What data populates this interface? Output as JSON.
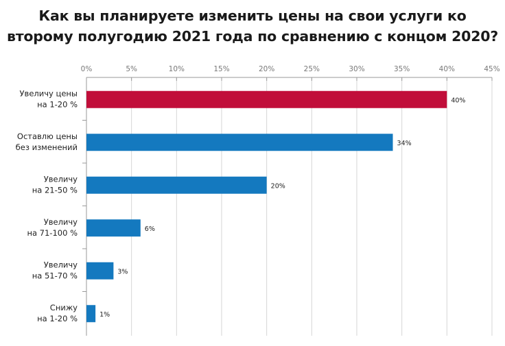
{
  "chart_data": {
    "type": "bar",
    "orientation": "horizontal",
    "title_lines": [
      "Как вы планируете изменить цены на свои услуги ко",
      "второму полугодию 2021 года по сравнению с концом 2020?"
    ],
    "categories": [
      [
        "Увеличу цены",
        "на 1-20 %"
      ],
      [
        "Оставлю цены",
        "без изменений"
      ],
      [
        "Увеличу",
        "на 21-50 %"
      ],
      [
        "Увеличу",
        "на 71-100 %"
      ],
      [
        "Увеличу",
        "на 51-70 %"
      ],
      [
        "Снижу",
        "на 1-20 %"
      ]
    ],
    "values": [
      40,
      34,
      20,
      6,
      3,
      1
    ],
    "data_labels": [
      "40%",
      "34%",
      "20%",
      "6%",
      "3%",
      "1%"
    ],
    "xlim": [
      0,
      45
    ],
    "xticks": [
      0,
      5,
      10,
      15,
      20,
      25,
      30,
      35,
      40,
      45
    ],
    "xtick_labels": [
      "0%",
      "5%",
      "10%",
      "15%",
      "20%",
      "25%",
      "30%",
      "35%",
      "40%",
      "45%"
    ],
    "axis_position": "top",
    "grid": true,
    "bar_colors": [
      "#c10e3a",
      "#1479bf",
      "#1479bf",
      "#1479bf",
      "#1479bf",
      "#1479bf"
    ]
  }
}
